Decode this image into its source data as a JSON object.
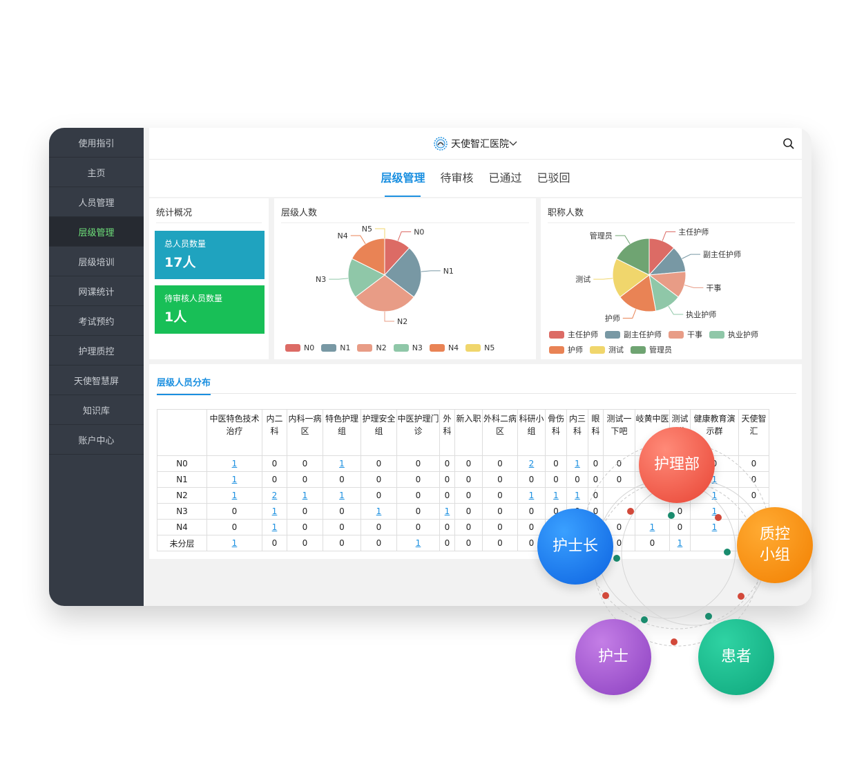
{
  "sidebar": {
    "items": [
      {
        "label": "使用指引",
        "active": false
      },
      {
        "label": "主页",
        "active": false
      },
      {
        "label": "人员管理",
        "active": false
      },
      {
        "label": "层级管理",
        "active": true
      },
      {
        "label": "层级培训",
        "active": false
      },
      {
        "label": "网课统计",
        "active": false
      },
      {
        "label": "考试预约",
        "active": false
      },
      {
        "label": "护理质控",
        "active": false
      },
      {
        "label": "天使智慧屏",
        "active": false
      },
      {
        "label": "知识库",
        "active": false
      },
      {
        "label": "账户中心",
        "active": false
      }
    ]
  },
  "header": {
    "hospital_name": "天使智汇医院",
    "hospital_logo_icon": "hospital-logo-icon",
    "dropdown_icon": "chevron-down-icon",
    "search_icon": "search-icon"
  },
  "tabs": [
    {
      "label": "层级管理",
      "active": true
    },
    {
      "label": "待审核",
      "active": false
    },
    {
      "label": "已通过",
      "active": false
    },
    {
      "label": "已驳回",
      "active": false
    }
  ],
  "stats": {
    "title": "统计概况",
    "total_label": "总人员数量",
    "total_value": "17人",
    "pending_label": "待审核人员数量",
    "pending_value": "1人"
  },
  "chart_data": [
    {
      "type": "pie",
      "title": "层级人数",
      "categories": [
        "N0",
        "N1",
        "N2",
        "N3",
        "N4",
        "N5"
      ],
      "values": [
        2,
        4,
        5,
        3,
        3,
        0
      ],
      "colors": [
        "#dc6b65",
        "#7898a4",
        "#e89c86",
        "#8fc7a8",
        "#e98355",
        "#f0d66c"
      ],
      "legend": "bottom"
    },
    {
      "type": "pie",
      "title": "职称人数",
      "categories": [
        "主任护师",
        "副主任护师",
        "干事",
        "执业护师",
        "护师",
        "测试",
        "管理员"
      ],
      "values": [
        2,
        2,
        2,
        2,
        3,
        3,
        3
      ],
      "colors": [
        "#dc6b65",
        "#7898a4",
        "#e89c86",
        "#8fc7a8",
        "#e98355",
        "#f0d66c",
        "#6fa472"
      ],
      "legend": "bottom"
    }
  ],
  "distribution": {
    "title": "层级人员分布",
    "columns": [
      "中医特色技术治疗",
      "内二科",
      "内科一病区",
      "特色护理组",
      "护理安全组",
      "中医护理门诊",
      "外科",
      "新入职",
      "外科二病区",
      "科研小组",
      "骨伤科",
      "内三科",
      "眼科",
      "测试一下吧",
      "岐黄中医",
      "测试群",
      "健康教育演示群",
      "天使智汇"
    ],
    "rows": [
      {
        "label": "N0",
        "values": [
          "1",
          "0",
          "0",
          "1",
          "0",
          "0",
          "0",
          "0",
          "0",
          "2",
          "0",
          "1",
          "0",
          "0",
          "",
          "",
          "0",
          "0"
        ]
      },
      {
        "label": "N1",
        "values": [
          "1",
          "0",
          "0",
          "0",
          "0",
          "0",
          "0",
          "0",
          "0",
          "0",
          "0",
          "0",
          "0",
          "0",
          "",
          "",
          "1",
          "0"
        ]
      },
      {
        "label": "N2",
        "values": [
          "1",
          "2",
          "1",
          "1",
          "0",
          "0",
          "0",
          "0",
          "0",
          "1",
          "1",
          "1",
          "0",
          "",
          "",
          "1",
          "1",
          "0"
        ]
      },
      {
        "label": "N3",
        "values": [
          "0",
          "1",
          "0",
          "0",
          "1",
          "0",
          "1",
          "0",
          "0",
          "0",
          "0",
          "0",
          "0",
          "",
          "",
          "0",
          "1",
          ""
        ]
      },
      {
        "label": "N4",
        "values": [
          "0",
          "1",
          "0",
          "0",
          "0",
          "0",
          "0",
          "0",
          "0",
          "0",
          "",
          "",
          "",
          "0",
          "1",
          "0",
          "1",
          ""
        ]
      },
      {
        "label": "未分层",
        "values": [
          "1",
          "0",
          "0",
          "0",
          "0",
          "1",
          "0",
          "0",
          "0",
          "0",
          "",
          "",
          "",
          "0",
          "0",
          "1",
          "",
          ""
        ]
      }
    ]
  },
  "overlay": {
    "nursing_dept": "护理部",
    "head_nurse": "护士长",
    "qc_group": "质控小组",
    "nurse": "护士",
    "patient": "患者",
    "colors": {
      "nursing_dept": "#ef5b4c",
      "head_nurse": "#1377f0",
      "qc_group": "#f68e10",
      "nurse": "#9b4ec9",
      "patient": "#12b187"
    }
  }
}
